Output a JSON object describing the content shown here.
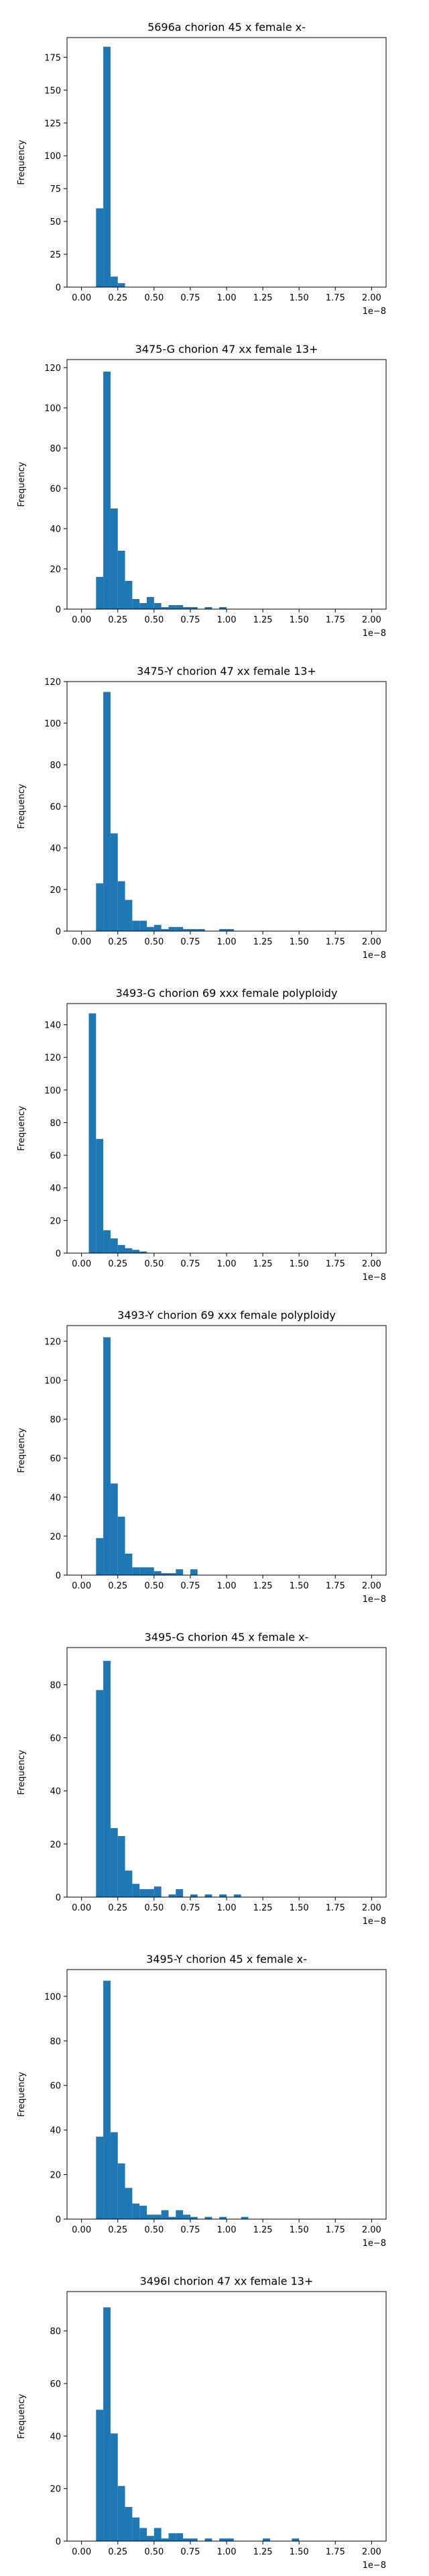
{
  "chart_data": [
    {
      "type": "bar",
      "title": "5696a chorion 45 x female x-",
      "xlabel": "",
      "ylabel": "Frequency",
      "x_offset_label": "1e−8",
      "xlim": [
        -0.1,
        2.1
      ],
      "ylim": [
        0,
        190
      ],
      "xticks": [
        "0.00",
        "0.25",
        "0.50",
        "0.75",
        "1.00",
        "1.25",
        "1.50",
        "1.75",
        "2.00"
      ],
      "yticks": [
        0,
        25,
        50,
        75,
        100,
        125,
        150,
        175
      ],
      "bin_width": 0.05,
      "bin_starts": [
        0.1,
        0.15,
        0.2,
        0.25
      ],
      "values": [
        60,
        183,
        8,
        3
      ]
    },
    {
      "type": "bar",
      "title": "3475-G chorion 47 xx female 13+",
      "xlabel": "",
      "ylabel": "Frequency",
      "x_offset_label": "1e−8",
      "xlim": [
        -0.1,
        2.1
      ],
      "ylim": [
        0,
        124
      ],
      "xticks": [
        "0.00",
        "0.25",
        "0.50",
        "0.75",
        "1.00",
        "1.25",
        "1.50",
        "1.75",
        "2.00"
      ],
      "yticks": [
        0,
        20,
        40,
        60,
        80,
        100,
        120
      ],
      "bin_width": 0.05,
      "bin_starts": [
        0.1,
        0.15,
        0.2,
        0.25,
        0.3,
        0.35,
        0.4,
        0.45,
        0.5,
        0.55,
        0.6,
        0.65,
        0.7,
        0.75,
        0.85,
        0.95
      ],
      "values": [
        16,
        118,
        50,
        29,
        14,
        5,
        3,
        6,
        3,
        1,
        2,
        2,
        1,
        1,
        1,
        1
      ]
    },
    {
      "type": "bar",
      "title": "3475-Y chorion 47 xx female 13+",
      "xlabel": "",
      "ylabel": "Frequency",
      "x_offset_label": "1e−8",
      "xlim": [
        -0.1,
        2.1
      ],
      "ylim": [
        0,
        120
      ],
      "xticks": [
        "0.00",
        "0.25",
        "0.50",
        "0.75",
        "1.00",
        "1.25",
        "1.50",
        "1.75",
        "2.00"
      ],
      "yticks": [
        0,
        20,
        40,
        60,
        80,
        100,
        120
      ],
      "bin_width": 0.05,
      "bin_starts": [
        0.1,
        0.15,
        0.2,
        0.25,
        0.3,
        0.35,
        0.4,
        0.45,
        0.5,
        0.55,
        0.6,
        0.65,
        0.7,
        0.75,
        0.8,
        0.95,
        1.0
      ],
      "values": [
        23,
        115,
        47,
        24,
        15,
        5,
        5,
        2,
        3,
        1,
        2,
        2,
        1,
        1,
        1,
        1,
        1
      ]
    },
    {
      "type": "bar",
      "title": "3493-G chorion 69 xxx female polyploidy",
      "xlabel": "",
      "ylabel": "Frequency",
      "x_offset_label": "1e−8",
      "xlim": [
        -0.1,
        2.1
      ],
      "ylim": [
        0,
        153
      ],
      "xticks": [
        "0.00",
        "0.25",
        "0.50",
        "0.75",
        "1.00",
        "1.25",
        "1.50",
        "1.75",
        "2.00"
      ],
      "yticks": [
        0,
        20,
        40,
        60,
        80,
        100,
        120,
        140
      ],
      "bin_width": 0.05,
      "bin_starts": [
        0.05,
        0.1,
        0.15,
        0.2,
        0.25,
        0.3,
        0.35,
        0.4
      ],
      "values": [
        147,
        70,
        14,
        9,
        5,
        3,
        2,
        1
      ]
    },
    {
      "type": "bar",
      "title": "3493-Y chorion 69 xxx female polyploidy",
      "xlabel": "",
      "ylabel": "Frequency",
      "x_offset_label": "1e−8",
      "xlim": [
        -0.1,
        2.1
      ],
      "ylim": [
        0,
        128
      ],
      "xticks": [
        "0.00",
        "0.25",
        "0.50",
        "0.75",
        "1.00",
        "1.25",
        "1.50",
        "1.75",
        "2.00"
      ],
      "yticks": [
        0,
        20,
        40,
        60,
        80,
        100,
        120
      ],
      "bin_width": 0.05,
      "bin_starts": [
        0.1,
        0.15,
        0.2,
        0.25,
        0.3,
        0.35,
        0.4,
        0.45,
        0.5,
        0.55,
        0.6,
        0.65,
        0.75
      ],
      "values": [
        19,
        122,
        47,
        30,
        11,
        4,
        4,
        4,
        2,
        1,
        1,
        3,
        3
      ]
    },
    {
      "type": "bar",
      "title": "3495-G chorion 45 x female x-",
      "xlabel": "",
      "ylabel": "Frequency",
      "x_offset_label": "1e−8",
      "xlim": [
        -0.1,
        2.1
      ],
      "ylim": [
        0,
        94
      ],
      "xticks": [
        "0.00",
        "0.25",
        "0.50",
        "0.75",
        "1.00",
        "1.25",
        "1.50",
        "1.75",
        "2.00"
      ],
      "yticks": [
        0,
        20,
        40,
        60,
        80
      ],
      "bin_width": 0.05,
      "bin_starts": [
        0.1,
        0.15,
        0.2,
        0.25,
        0.3,
        0.35,
        0.4,
        0.45,
        0.5,
        0.6,
        0.65,
        0.75,
        0.85,
        0.95,
        1.05
      ],
      "values": [
        78,
        89,
        26,
        23,
        10,
        5,
        3,
        3,
        4,
        1,
        3,
        1,
        1,
        1,
        1
      ]
    },
    {
      "type": "bar",
      "title": "3495-Y chorion 45 x female x-",
      "xlabel": "",
      "ylabel": "Frequency",
      "x_offset_label": "1e−8",
      "xlim": [
        -0.1,
        2.1
      ],
      "ylim": [
        0,
        112
      ],
      "xticks": [
        "0.00",
        "0.25",
        "0.50",
        "0.75",
        "1.00",
        "1.25",
        "1.50",
        "1.75",
        "2.00"
      ],
      "yticks": [
        0,
        20,
        40,
        60,
        80,
        100
      ],
      "bin_width": 0.05,
      "bin_starts": [
        0.1,
        0.15,
        0.2,
        0.25,
        0.3,
        0.35,
        0.4,
        0.45,
        0.5,
        0.55,
        0.6,
        0.65,
        0.7,
        0.75,
        0.85,
        0.95,
        1.1
      ],
      "values": [
        37,
        107,
        39,
        25,
        14,
        7,
        6,
        2,
        2,
        4,
        1,
        4,
        2,
        1,
        1,
        1,
        1
      ]
    },
    {
      "type": "bar",
      "title": "3496I chorion 47 xx female 13+",
      "xlabel": "",
      "ylabel": "Frequency",
      "x_offset_label": "1e−8",
      "xlim": [
        -0.1,
        2.1
      ],
      "ylim": [
        0,
        95
      ],
      "xticks": [
        "0.00",
        "0.25",
        "0.50",
        "0.75",
        "1.00",
        "1.25",
        "1.50",
        "1.75",
        "2.00"
      ],
      "yticks": [
        0,
        20,
        40,
        60,
        80
      ],
      "bin_width": 0.05,
      "bin_starts": [
        0.1,
        0.15,
        0.2,
        0.25,
        0.3,
        0.35,
        0.4,
        0.45,
        0.5,
        0.55,
        0.6,
        0.65,
        0.7,
        0.75,
        0.85,
        0.95,
        1.0,
        1.25,
        1.45
      ],
      "values": [
        50,
        89,
        41,
        21,
        13,
        9,
        5,
        2,
        5,
        1,
        3,
        3,
        1,
        1,
        1,
        1,
        1,
        1,
        1
      ]
    }
  ]
}
